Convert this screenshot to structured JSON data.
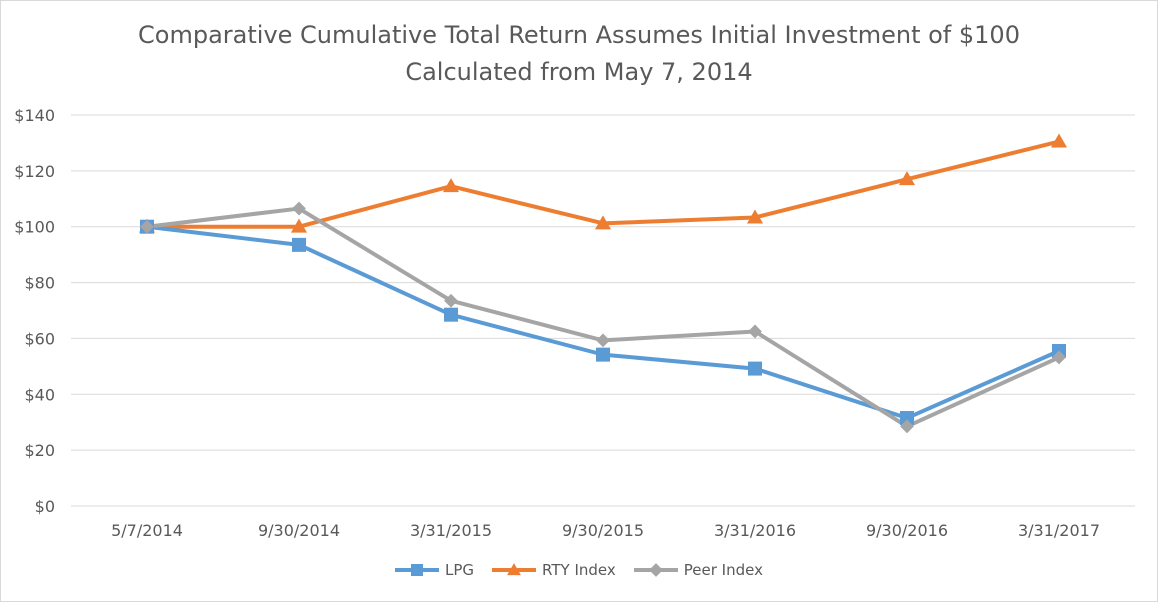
{
  "chart_data": {
    "type": "line",
    "title": "Comparative Cumulative Total Return Assumes Initial Investment of $100",
    "subtitle": "Calculated from May 7, 2014",
    "categories": [
      "5/7/2014",
      "9/30/2014",
      "3/31/2015",
      "9/30/2015",
      "3/31/2016",
      "9/30/2016",
      "3/31/2017"
    ],
    "ylim": [
      0,
      140
    ],
    "yticks": [
      0,
      20,
      40,
      60,
      80,
      100,
      120,
      140
    ],
    "ytick_labels": [
      "$0",
      "$20",
      "$40",
      "$60",
      "$80",
      "$100",
      "$120",
      "$140"
    ],
    "grid": true,
    "legend_position": "bottom",
    "series": [
      {
        "name": "LPG",
        "color": "#5b9bd5",
        "marker": "square",
        "values": [
          100,
          93.5,
          68.5,
          54.2,
          49.2,
          31.5,
          55.5
        ]
      },
      {
        "name": "RTY Index",
        "color": "#ed7d31",
        "marker": "triangle",
        "values": [
          100,
          100,
          114.5,
          101.2,
          103.3,
          117.0,
          130.5
        ]
      },
      {
        "name": "Peer Index",
        "color": "#a5a5a5",
        "marker": "diamond",
        "values": [
          100,
          106.5,
          73.5,
          59.3,
          62.5,
          28.5,
          53.2
        ]
      }
    ]
  }
}
